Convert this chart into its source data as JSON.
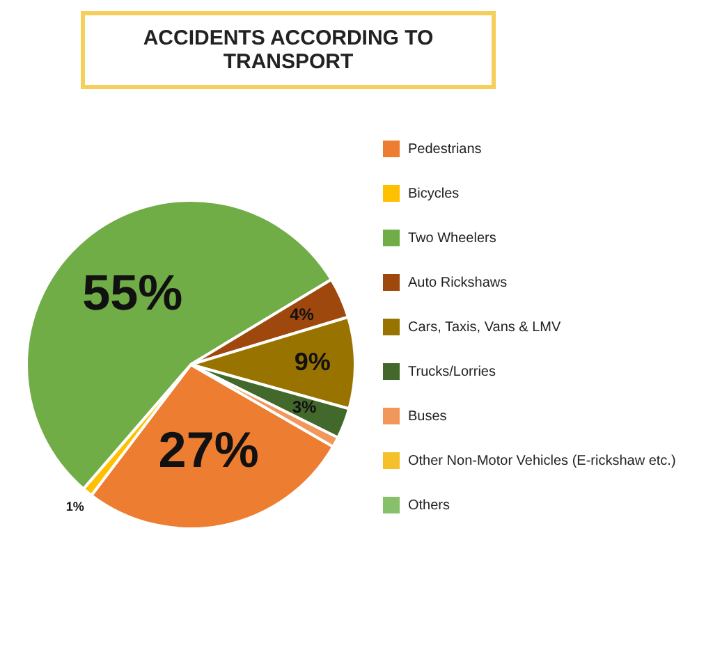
{
  "chart_data": {
    "type": "pie",
    "title": "ACCIDENTS ACCORDING TO TRANSPORT",
    "categories": [
      "Pedestrians",
      "Bicycles",
      "Two Wheelers",
      "Auto Rickshaws",
      "Cars, Taxis, Vans & LMV",
      "Trucks/Lorries",
      "Buses",
      "Other Non-Motor Vehicles (E-rickshaw etc.)",
      "Others"
    ],
    "values": [
      27,
      1,
      55,
      4,
      9,
      3,
      1,
      0,
      0
    ],
    "value_labels": [
      "27%",
      "1%",
      "55%",
      "4%",
      "9%",
      "3%",
      null,
      null,
      null
    ],
    "colors": [
      "#ed7d31",
      "#ffc000",
      "#70ad47",
      "#9e480e",
      "#997300",
      "#43682b",
      "#f1975a",
      "#f5c02a",
      "#86c06a"
    ],
    "legend": "right"
  }
}
